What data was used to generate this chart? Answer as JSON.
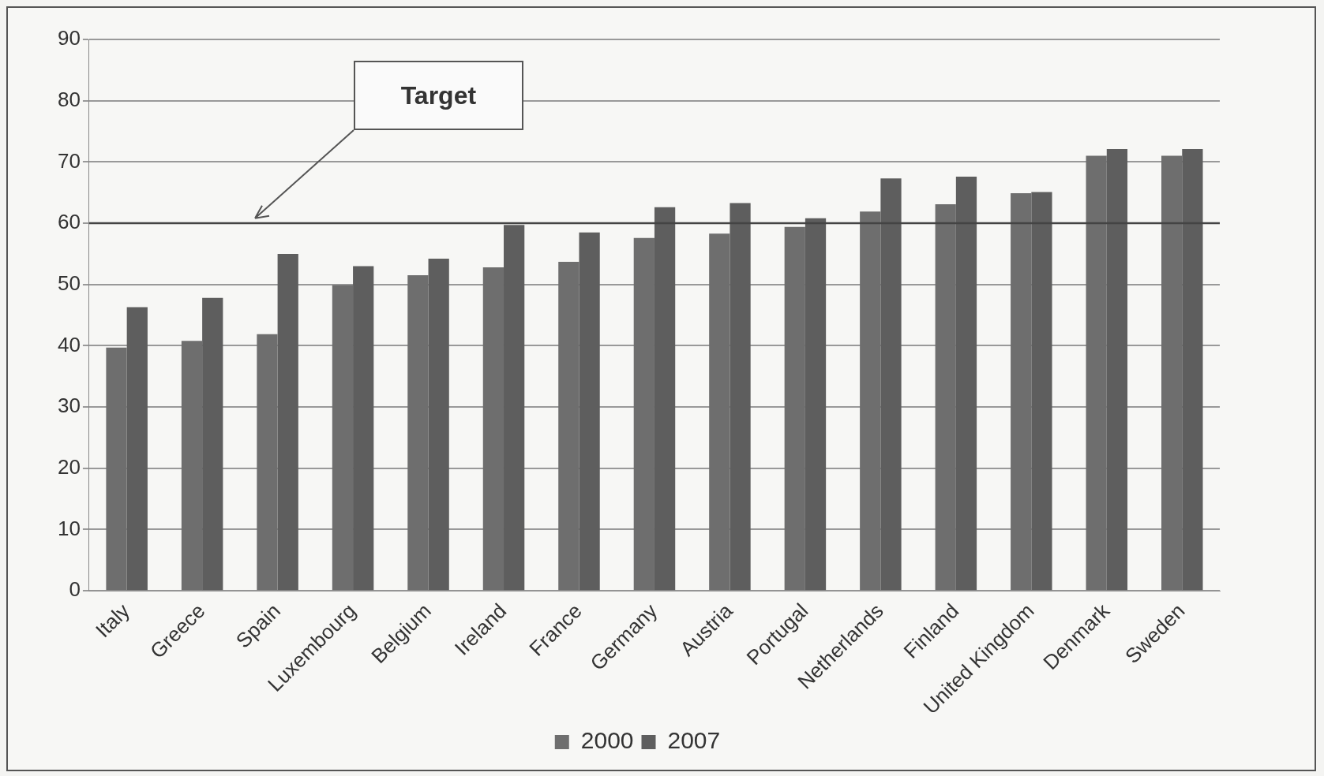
{
  "chart_data": {
    "type": "bar",
    "categories": [
      "Italy",
      "Greece",
      "Spain",
      "Luxembourg",
      "Belgium",
      "Ireland",
      "France",
      "Germany",
      "Austria",
      "Portugal",
      "Netherlands",
      "Finland",
      "United Kingdom",
      "Denmark",
      "Sweden"
    ],
    "series": [
      {
        "name": "2000",
        "color": "#6e6e6e",
        "values": [
          39.7,
          40.8,
          41.9,
          49.9,
          51.5,
          52.8,
          53.7,
          57.6,
          58.3,
          59.4,
          61.9,
          63.1,
          64.9,
          71,
          71
        ]
      },
      {
        "name": "2007",
        "color": "#5e5e5e",
        "values": [
          46.3,
          47.8,
          55,
          53,
          54.2,
          59.7,
          58.5,
          62.6,
          63.3,
          60.8,
          67.3,
          67.6,
          65.1,
          72.1,
          72.1
        ]
      }
    ],
    "ylim": [
      0,
      90
    ],
    "yticks": [
      0,
      10,
      20,
      30,
      40,
      50,
      60,
      70,
      80,
      90
    ],
    "grid": "y",
    "legend": "bottom",
    "ref_lines": [
      {
        "axis": "y",
        "value": 60,
        "color": "#444444"
      }
    ],
    "annotations": [
      "Target"
    ]
  }
}
